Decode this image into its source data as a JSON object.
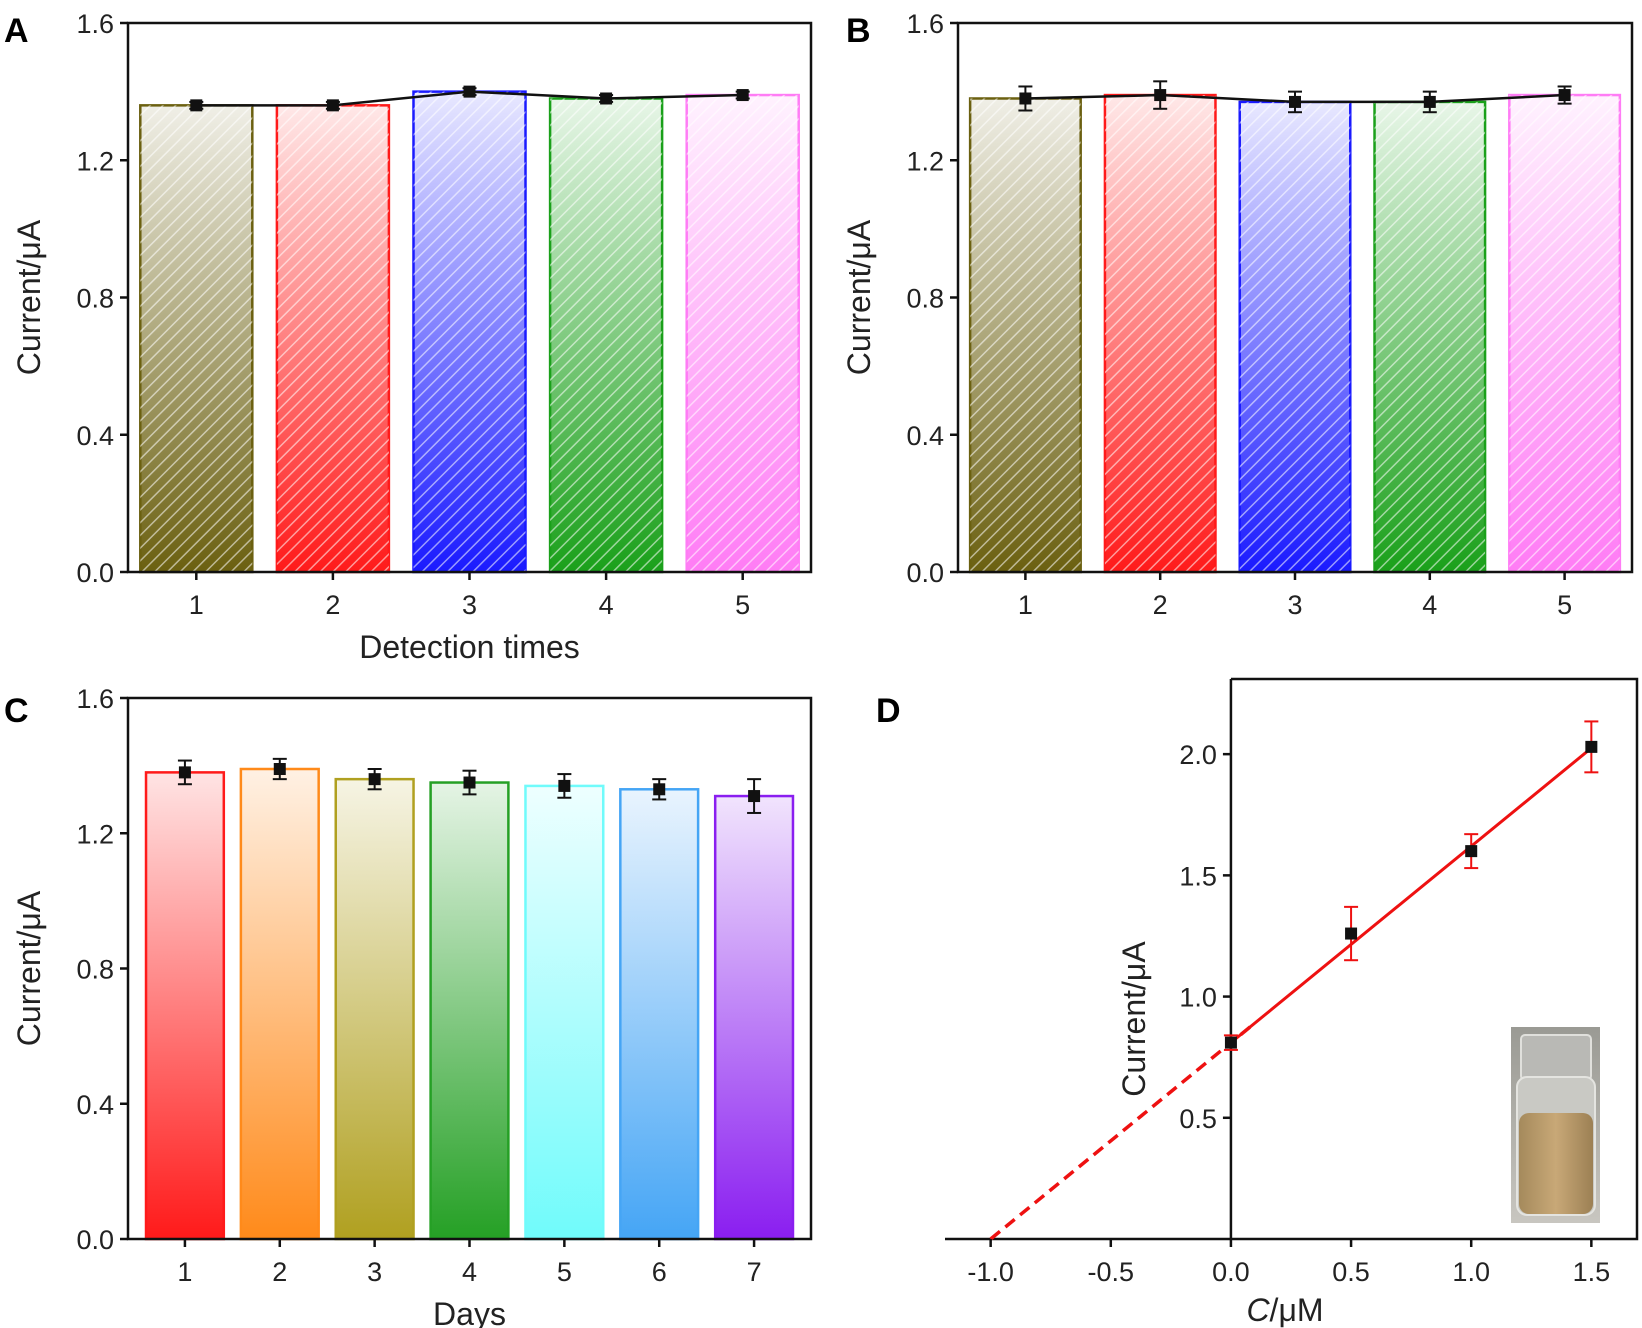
{
  "chart_data": [
    {
      "panel": "A",
      "type": "bar",
      "xlabel": "Detection times",
      "ylabel": "Current/μA",
      "categories": [
        "1",
        "2",
        "3",
        "4",
        "5"
      ],
      "values": [
        1.36,
        1.36,
        1.4,
        1.38,
        1.39
      ],
      "errors": [
        0.01,
        0.01,
        0.01,
        0.01,
        0.01
      ],
      "colors": [
        "#6b6010",
        "#ff1a1a",
        "#1a1aff",
        "#1aa01a",
        "#ff7cf5"
      ],
      "hatched": true,
      "connecting_line": true,
      "xlim": [
        0.5,
        5.5
      ],
      "ylim": [
        0,
        1.6
      ],
      "yticks": [
        "0.0",
        "0.4",
        "0.8",
        "1.2",
        "1.6"
      ]
    },
    {
      "panel": "B",
      "type": "bar",
      "xlabel": "",
      "ylabel": "Current/μA",
      "categories": [
        "1",
        "2",
        "3",
        "4",
        "5"
      ],
      "values": [
        1.38,
        1.39,
        1.37,
        1.37,
        1.39
      ],
      "errors": [
        0.035,
        0.04,
        0.03,
        0.03,
        0.025
      ],
      "colors": [
        "#6b6010",
        "#ff1a1a",
        "#1a1aff",
        "#1aa01a",
        "#ff7cf5"
      ],
      "hatched": true,
      "connecting_line": true,
      "xlim": [
        0.5,
        5.5
      ],
      "ylim": [
        0,
        1.6
      ],
      "yticks": [
        "0.0",
        "0.4",
        "0.8",
        "1.2",
        "1.6"
      ]
    },
    {
      "panel": "C",
      "type": "bar",
      "xlabel": "Days",
      "ylabel": "Current/μA",
      "categories": [
        "1",
        "2",
        "3",
        "4",
        "5",
        "6",
        "7"
      ],
      "values": [
        1.38,
        1.39,
        1.36,
        1.35,
        1.34,
        1.33,
        1.31
      ],
      "errors": [
        0.035,
        0.03,
        0.03,
        0.035,
        0.035,
        0.03,
        0.05
      ],
      "colors": [
        "#ff1a1a",
        "#ff8a1a",
        "#b0a020",
        "#25a025",
        "#70fbfb",
        "#45a5f5",
        "#8a1ef0"
      ],
      "hatched": false,
      "connecting_line": false,
      "xlim": [
        0.4,
        7.6
      ],
      "ylim": [
        0,
        1.6
      ],
      "yticks": [
        "0.0",
        "0.4",
        "0.8",
        "1.2",
        "1.6"
      ]
    },
    {
      "panel": "D",
      "type": "scatter",
      "xlabel_italic": "C",
      "xlabel_unit": "/μM",
      "ylabel": "Current/μA",
      "x": [
        0,
        0.5,
        1.0,
        1.5
      ],
      "y": [
        0.81,
        1.26,
        1.6,
        2.03
      ],
      "errors": [
        0.03,
        0.11,
        0.07,
        0.105
      ],
      "fit": {
        "slope": 0.81,
        "intercept": 0.81,
        "extrapolated_to_x": -1.0
      },
      "line_color": "#ee1111",
      "xlim": [
        -1.19,
        1.69
      ],
      "ylim": [
        0,
        2.31
      ],
      "xticks": [
        "-1.0",
        "-0.5",
        "0.0",
        "0.5",
        "1.0",
        "1.5"
      ],
      "yticks": [
        "0.5",
        "1.0",
        "1.5",
        "2.0"
      ],
      "inset": "photo of vial with brownish liquid"
    }
  ],
  "panel_labels": [
    "A",
    "B",
    "C",
    "D"
  ]
}
